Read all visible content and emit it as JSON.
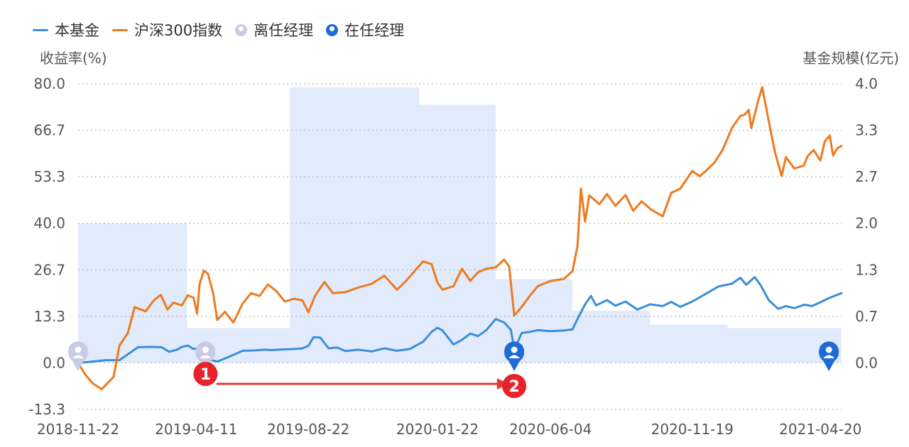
{
  "legend": {
    "fund": "本基金",
    "index": "沪深300指数",
    "former_manager": "离任经理",
    "current_manager": "在任经理"
  },
  "colors": {
    "fund_line": "#3a8fd8",
    "index_line": "#ee7a1f",
    "scale_bars": "#dce8fb",
    "marker_red": "#e8222a",
    "arrow_red": "#e53935",
    "current_manager": "#1f6bd6",
    "former_manager": "#c9cbe6"
  },
  "chart_data": {
    "type": "line",
    "title": "",
    "ylabel": "收益率(%)",
    "y2label": "基金规模(亿元)",
    "ylim": [
      -13.3,
      80.0
    ],
    "y2lim": [
      -0.665,
      4.0
    ],
    "y_ticks": [
      "80.0",
      "66.7",
      "53.3",
      "40.0",
      "26.7",
      "13.3",
      "0.0",
      "-13.3"
    ],
    "y2_ticks": [
      "4.0",
      "3.3",
      "2.7",
      "2.0",
      "1.3",
      "0.7",
      "0.0"
    ],
    "x_ticks": [
      "2018-11-22",
      "2019-04-11",
      "2019-08-22",
      "2020-01-22",
      "2020-06-04",
      "2020-11-19",
      "2021-04-20"
    ],
    "x_range": [
      "2018-11-22",
      "2021-05-15"
    ],
    "grid": true,
    "legend_position": "top-left",
    "series": [
      {
        "name": "本基金",
        "kind": "line",
        "axis": "left",
        "points": [
          [
            "2018-11-22",
            0.0
          ],
          [
            "2018-12-05",
            0.3
          ],
          [
            "2018-12-25",
            0.8
          ],
          [
            "2019-01-10",
            0.8
          ],
          [
            "2019-01-20",
            2.5
          ],
          [
            "2019-02-01",
            4.5
          ],
          [
            "2019-02-15",
            4.6
          ],
          [
            "2019-03-01",
            4.5
          ],
          [
            "2019-03-10",
            3.2
          ],
          [
            "2019-03-20",
            3.9
          ],
          [
            "2019-03-25",
            4.6
          ],
          [
            "2019-04-01",
            5.0
          ],
          [
            "2019-04-08",
            4.0
          ],
          [
            "2019-04-15",
            4.4
          ],
          [
            "2019-04-20",
            3.0
          ],
          [
            "2019-04-25",
            1.0
          ],
          [
            "2019-05-06",
            0.4
          ],
          [
            "2019-05-15",
            1.3
          ],
          [
            "2019-05-25",
            2.3
          ],
          [
            "2019-06-05",
            3.5
          ],
          [
            "2019-06-20",
            3.6
          ],
          [
            "2019-07-01",
            3.8
          ],
          [
            "2019-07-10",
            3.7
          ],
          [
            "2019-07-25",
            3.9
          ],
          [
            "2019-08-05",
            4.0
          ],
          [
            "2019-08-15",
            4.2
          ],
          [
            "2019-08-22",
            4.9
          ],
          [
            "2019-08-28",
            7.4
          ],
          [
            "2019-09-05",
            7.3
          ],
          [
            "2019-09-15",
            4.2
          ],
          [
            "2019-09-25",
            4.4
          ],
          [
            "2019-10-05",
            3.4
          ],
          [
            "2019-10-20",
            3.8
          ],
          [
            "2019-11-05",
            3.3
          ],
          [
            "2019-11-20",
            4.2
          ],
          [
            "2019-12-05",
            3.5
          ],
          [
            "2019-12-20",
            4.0
          ],
          [
            "2020-01-05",
            6.1
          ],
          [
            "2020-01-15",
            8.9
          ],
          [
            "2020-01-22",
            10.1
          ],
          [
            "2020-01-28",
            9.3
          ],
          [
            "2020-02-10",
            5.3
          ],
          [
            "2020-02-20",
            6.6
          ],
          [
            "2020-03-01",
            8.4
          ],
          [
            "2020-03-10",
            7.7
          ],
          [
            "2020-03-20",
            9.4
          ],
          [
            "2020-03-31",
            12.6
          ],
          [
            "2020-04-10",
            11.6
          ],
          [
            "2020-04-18",
            9.5
          ],
          [
            "2020-04-22",
            3.9
          ],
          [
            "2020-05-01",
            8.6
          ],
          [
            "2020-05-10",
            8.9
          ],
          [
            "2020-05-20",
            9.4
          ],
          [
            "2020-06-04",
            9.1
          ],
          [
            "2020-06-20",
            9.3
          ],
          [
            "2020-06-30",
            9.6
          ],
          [
            "2020-07-06",
            12.6
          ],
          [
            "2020-07-15",
            16.8
          ],
          [
            "2020-07-22",
            19.2
          ],
          [
            "2020-07-28",
            16.5
          ],
          [
            "2020-08-10",
            18.0
          ],
          [
            "2020-08-20",
            16.4
          ],
          [
            "2020-09-01",
            17.6
          ],
          [
            "2020-09-15",
            15.3
          ],
          [
            "2020-09-30",
            16.8
          ],
          [
            "2020-10-15",
            16.3
          ],
          [
            "2020-10-25",
            17.5
          ],
          [
            "2020-11-05",
            16.1
          ],
          [
            "2020-11-19",
            17.6
          ],
          [
            "2020-12-05",
            19.8
          ],
          [
            "2020-12-20",
            21.9
          ],
          [
            "2021-01-05",
            22.7
          ],
          [
            "2021-01-15",
            24.4
          ],
          [
            "2021-01-22",
            22.4
          ],
          [
            "2021-02-01",
            24.6
          ],
          [
            "2021-02-08",
            22.3
          ],
          [
            "2021-02-18",
            17.9
          ],
          [
            "2021-03-01",
            15.5
          ],
          [
            "2021-03-10",
            16.3
          ],
          [
            "2021-03-20",
            15.7
          ],
          [
            "2021-04-01",
            16.7
          ],
          [
            "2021-04-10",
            16.3
          ],
          [
            "2021-04-20",
            17.4
          ],
          [
            "2021-04-30",
            18.6
          ],
          [
            "2021-05-15",
            20.0
          ]
        ]
      },
      {
        "name": "沪深300指数",
        "kind": "line",
        "axis": "left",
        "points": [
          [
            "2018-11-22",
            0.0
          ],
          [
            "2018-12-01",
            -3.5
          ],
          [
            "2018-12-10",
            -6.0
          ],
          [
            "2018-12-20",
            -7.5
          ],
          [
            "2019-01-03",
            -4.0
          ],
          [
            "2019-01-10",
            5.0
          ],
          [
            "2019-01-20",
            8.6
          ],
          [
            "2019-01-28",
            16.0
          ],
          [
            "2019-02-10",
            14.8
          ],
          [
            "2019-02-20",
            18.0
          ],
          [
            "2019-02-28",
            19.5
          ],
          [
            "2019-03-08",
            15.3
          ],
          [
            "2019-03-15",
            17.3
          ],
          [
            "2019-03-25",
            16.5
          ],
          [
            "2019-04-01",
            19.4
          ],
          [
            "2019-04-08",
            18.7
          ],
          [
            "2019-04-12",
            14.1
          ],
          [
            "2019-04-15",
            22.5
          ],
          [
            "2019-04-20",
            26.5
          ],
          [
            "2019-04-25",
            25.5
          ],
          [
            "2019-05-01",
            20.0
          ],
          [
            "2019-05-06",
            12.3
          ],
          [
            "2019-05-15",
            14.7
          ],
          [
            "2019-05-25",
            11.6
          ],
          [
            "2019-06-05",
            17.0
          ],
          [
            "2019-06-15",
            20.0
          ],
          [
            "2019-06-25",
            19.2
          ],
          [
            "2019-07-05",
            22.5
          ],
          [
            "2019-07-15",
            20.6
          ],
          [
            "2019-07-25",
            17.6
          ],
          [
            "2019-08-05",
            18.4
          ],
          [
            "2019-08-15",
            17.9
          ],
          [
            "2019-08-22",
            14.5
          ],
          [
            "2019-08-30",
            19.3
          ],
          [
            "2019-09-10",
            23.2
          ],
          [
            "2019-09-20",
            20.0
          ],
          [
            "2019-10-05",
            20.3
          ],
          [
            "2019-10-20",
            21.6
          ],
          [
            "2019-11-05",
            22.7
          ],
          [
            "2019-11-20",
            25.0
          ],
          [
            "2019-12-05",
            21.0
          ],
          [
            "2019-12-15",
            23.3
          ],
          [
            "2019-12-25",
            26.1
          ],
          [
            "2020-01-05",
            29.1
          ],
          [
            "2020-01-15",
            28.3
          ],
          [
            "2020-01-22",
            23.0
          ],
          [
            "2020-01-28",
            21.0
          ],
          [
            "2020-02-10",
            22.0
          ],
          [
            "2020-02-20",
            27.0
          ],
          [
            "2020-03-01",
            23.5
          ],
          [
            "2020-03-10",
            26.0
          ],
          [
            "2020-03-20",
            27.0
          ],
          [
            "2020-03-31",
            27.4
          ],
          [
            "2020-04-10",
            29.6
          ],
          [
            "2020-04-16",
            27.6
          ],
          [
            "2020-04-22",
            13.6
          ],
          [
            "2020-05-01",
            16.1
          ],
          [
            "2020-05-10",
            19.1
          ],
          [
            "2020-05-20",
            22.0
          ],
          [
            "2020-06-04",
            23.5
          ],
          [
            "2020-06-20",
            24.1
          ],
          [
            "2020-06-30",
            26.3
          ],
          [
            "2020-07-06",
            33.5
          ],
          [
            "2020-07-10",
            50.0
          ],
          [
            "2020-07-15",
            40.5
          ],
          [
            "2020-07-20",
            48.0
          ],
          [
            "2020-08-01",
            45.5
          ],
          [
            "2020-08-10",
            48.4
          ],
          [
            "2020-08-20",
            45.0
          ],
          [
            "2020-09-01",
            48.1
          ],
          [
            "2020-09-10",
            43.6
          ],
          [
            "2020-09-20",
            46.3
          ],
          [
            "2020-10-01",
            44.0
          ],
          [
            "2020-10-15",
            42.0
          ],
          [
            "2020-10-25",
            48.7
          ],
          [
            "2020-11-05",
            50.0
          ],
          [
            "2020-11-19",
            55.0
          ],
          [
            "2020-11-28",
            53.5
          ],
          [
            "2020-12-05",
            55.0
          ],
          [
            "2020-12-15",
            57.3
          ],
          [
            "2020-12-25",
            61.0
          ],
          [
            "2021-01-05",
            67.3
          ],
          [
            "2021-01-15",
            70.8
          ],
          [
            "2021-01-20",
            71.1
          ],
          [
            "2021-01-25",
            72.5
          ],
          [
            "2021-01-28",
            67.3
          ],
          [
            "2021-02-05",
            75.0
          ],
          [
            "2021-02-10",
            79.0
          ],
          [
            "2021-02-18",
            69.0
          ],
          [
            "2021-02-25",
            60.4
          ],
          [
            "2021-03-05",
            53.6
          ],
          [
            "2021-03-10",
            59.0
          ],
          [
            "2021-03-20",
            55.7
          ],
          [
            "2021-03-31",
            56.5
          ],
          [
            "2021-04-05",
            59.3
          ],
          [
            "2021-04-12",
            61.0
          ],
          [
            "2021-04-20",
            58.0
          ],
          [
            "2021-04-25",
            63.4
          ],
          [
            "2021-05-01",
            65.2
          ],
          [
            "2021-05-05",
            59.4
          ],
          [
            "2021-05-10",
            61.5
          ],
          [
            "2021-05-15",
            62.2
          ]
        ]
      },
      {
        "name": "基金规模",
        "kind": "step-area",
        "axis": "right",
        "steps": [
          [
            "2018-11-22",
            2.0
          ],
          [
            "2019-03-31",
            0.5
          ],
          [
            "2019-07-31",
            3.95
          ],
          [
            "2019-12-31",
            3.7
          ],
          [
            "2020-03-31",
            1.2
          ],
          [
            "2020-06-30",
            0.75
          ],
          [
            "2020-09-30",
            0.55
          ],
          [
            "2020-12-31",
            0.5
          ],
          [
            "2021-05-15",
            0.5
          ]
        ]
      }
    ],
    "annotations": [
      {
        "type": "former-manager",
        "date": "2018-11-22"
      },
      {
        "type": "former-manager",
        "date": "2019-04-22"
      },
      {
        "type": "current-manager",
        "date": "2020-04-22"
      },
      {
        "type": "current-manager",
        "date": "2021-04-30"
      },
      {
        "type": "marker",
        "label": "1",
        "date": "2019-04-22"
      },
      {
        "type": "marker",
        "label": "2",
        "date": "2020-04-22"
      },
      {
        "type": "arrow",
        "from": "2019-05-05",
        "to": "2020-04-15"
      }
    ]
  }
}
